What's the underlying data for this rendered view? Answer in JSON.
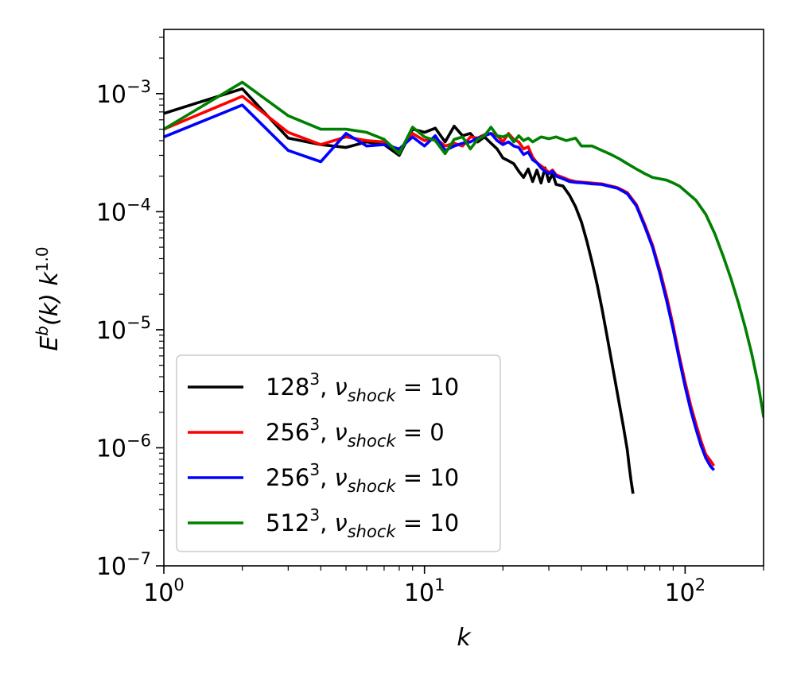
{
  "chart_data": {
    "type": "line",
    "x_scale": "log",
    "y_scale": "log",
    "xlim": [
      1,
      200
    ],
    "ylim": [
      1e-07,
      0.0035
    ],
    "xlabel": "k",
    "ylabel": {
      "main": "E",
      "sup": "b",
      "mid": "(k) k",
      "exp": "1.0"
    },
    "x_ticks": [
      {
        "value": 1,
        "base": "10",
        "exp": "0"
      },
      {
        "value": 10,
        "base": "10",
        "exp": "1"
      },
      {
        "value": 100,
        "base": "10",
        "exp": "2"
      }
    ],
    "y_ticks": [
      {
        "value": 1e-07,
        "base": "10",
        "exp": "−7"
      },
      {
        "value": 1e-06,
        "base": "10",
        "exp": "−6"
      },
      {
        "value": 1e-05,
        "base": "10",
        "exp": "−5"
      },
      {
        "value": 0.0001,
        "base": "10",
        "exp": "−4"
      },
      {
        "value": 0.001,
        "base": "10",
        "exp": "−3"
      }
    ],
    "legend": {
      "location": "lower-left"
    },
    "series": [
      {
        "name": "128^3, nu_shock = 10",
        "label": {
          "base": "128",
          "sup": "3",
          "sym": "ν",
          "sub": "shock",
          "eq": " = 10"
        },
        "color": "#000000",
        "points": [
          [
            1,
            0.00068
          ],
          [
            2,
            0.0011
          ],
          [
            3,
            0.00042
          ],
          [
            4,
            0.00037
          ],
          [
            5,
            0.00035
          ],
          [
            6,
            0.00039
          ],
          [
            7,
            0.00037
          ],
          [
            8,
            0.0003
          ],
          [
            9,
            0.0005
          ],
          [
            10,
            0.00047
          ],
          [
            11,
            0.00051
          ],
          [
            12,
            0.00039
          ],
          [
            13,
            0.00053
          ],
          [
            14,
            0.00044
          ],
          [
            15,
            0.00046
          ],
          [
            16,
            0.00039
          ],
          [
            17,
            0.00043
          ],
          [
            18,
            0.00038
          ],
          [
            19,
            0.00034
          ],
          [
            20,
            0.000285
          ],
          [
            21,
            0.00027
          ],
          [
            22,
            0.000255
          ],
          [
            23,
            0.00022
          ],
          [
            24,
            0.000195
          ],
          [
            25,
            0.00023
          ],
          [
            26,
            0.00018
          ],
          [
            27,
            0.000225
          ],
          [
            28,
            0.000175
          ],
          [
            29,
            0.000235
          ],
          [
            30,
            0.00018
          ],
          [
            31,
            0.00021
          ],
          [
            32,
            0.00017
          ],
          [
            34,
            0.000165
          ],
          [
            36,
            0.000138
          ],
          [
            38,
            0.00011
          ],
          [
            40,
            8.2e-05
          ],
          [
            42,
            5.6e-05
          ],
          [
            44,
            3.7e-05
          ],
          [
            46,
            2.4e-05
          ],
          [
            48,
            1.5e-05
          ],
          [
            50,
            9.2e-06
          ],
          [
            52,
            5.7e-06
          ],
          [
            54,
            3.6e-06
          ],
          [
            56,
            2.3e-06
          ],
          [
            58,
            1.5e-06
          ],
          [
            60,
            9.6e-07
          ],
          [
            61,
            7e-07
          ],
          [
            62,
            5.3e-07
          ],
          [
            63,
            4.2e-07
          ]
        ]
      },
      {
        "name": "256^3, nu_shock = 0",
        "label": {
          "base": "256",
          "sup": "3",
          "sym": "ν",
          "sub": "shock",
          "eq": " = 0"
        },
        "color": "#ff0000",
        "points": [
          [
            1,
            0.0005
          ],
          [
            2,
            0.00095
          ],
          [
            3,
            0.00047
          ],
          [
            4,
            0.00037
          ],
          [
            5,
            0.00043
          ],
          [
            6,
            0.0004
          ],
          [
            7,
            0.00039
          ],
          [
            8,
            0.00033
          ],
          [
            9,
            0.00046
          ],
          [
            10,
            0.0004
          ],
          [
            11,
            0.00042
          ],
          [
            12,
            0.00036
          ],
          [
            13,
            0.00038
          ],
          [
            14,
            0.00036
          ],
          [
            15,
            0.00043
          ],
          [
            16,
            0.00042
          ],
          [
            17,
            0.00045
          ],
          [
            18,
            0.00046
          ],
          [
            19,
            0.00044
          ],
          [
            20,
            0.00039
          ],
          [
            21,
            0.00046
          ],
          [
            22,
            0.00041
          ],
          [
            23,
            0.00039
          ],
          [
            24,
            0.00034
          ],
          [
            25,
            0.000355
          ],
          [
            26,
            0.00029
          ],
          [
            27,
            0.00026
          ],
          [
            28,
            0.000245
          ],
          [
            29,
            0.00023
          ],
          [
            30,
            0.000215
          ],
          [
            31,
            0.000225
          ],
          [
            32,
            0.000205
          ],
          [
            34,
            0.000195
          ],
          [
            36,
            0.000185
          ],
          [
            38,
            0.00018
          ],
          [
            40,
            0.000178
          ],
          [
            44,
            0.000175
          ],
          [
            48,
            0.000172
          ],
          [
            50,
            0.000168
          ],
          [
            55,
            0.00016
          ],
          [
            60,
            0.000145
          ],
          [
            65,
            0.000115
          ],
          [
            70,
            7.8e-05
          ],
          [
            75,
            5.2e-05
          ],
          [
            80,
            3.2e-05
          ],
          [
            85,
            1.9e-05
          ],
          [
            90,
            1.08e-05
          ],
          [
            95,
            6e-06
          ],
          [
            100,
            3.6e-06
          ],
          [
            105,
            2.3e-06
          ],
          [
            110,
            1.6e-06
          ],
          [
            115,
            1.15e-06
          ],
          [
            120,
            8.8e-07
          ],
          [
            125,
            7.8e-07
          ],
          [
            128,
            7.2e-07
          ]
        ]
      },
      {
        "name": "256^3, nu_shock = 10",
        "label": {
          "base": "256",
          "sup": "3",
          "sym": "ν",
          "sub": "shock",
          "eq": " = 10"
        },
        "color": "#0000ff",
        "points": [
          [
            1,
            0.00043
          ],
          [
            2,
            0.0008
          ],
          [
            3,
            0.00033
          ],
          [
            4,
            0.000265
          ],
          [
            5,
            0.00046
          ],
          [
            6,
            0.00036
          ],
          [
            7,
            0.00037
          ],
          [
            8,
            0.00034
          ],
          [
            9,
            0.00043
          ],
          [
            10,
            0.00036
          ],
          [
            11,
            0.00044
          ],
          [
            12,
            0.00033
          ],
          [
            13,
            0.00036
          ],
          [
            14,
            0.00038
          ],
          [
            15,
            0.00039
          ],
          [
            16,
            0.00042
          ],
          [
            17,
            0.00044
          ],
          [
            18,
            0.00046
          ],
          [
            19,
            0.0004
          ],
          [
            20,
            0.00037
          ],
          [
            21,
            0.00039
          ],
          [
            22,
            0.00036
          ],
          [
            23,
            0.00035
          ],
          [
            24,
            0.000305
          ],
          [
            25,
            0.00032
          ],
          [
            26,
            0.000275
          ],
          [
            27,
            0.00026
          ],
          [
            28,
            0.000235
          ],
          [
            29,
            0.00022
          ],
          [
            30,
            0.00021
          ],
          [
            31,
            0.00022
          ],
          [
            32,
            0.0002
          ],
          [
            34,
            0.00019
          ],
          [
            36,
            0.00018
          ],
          [
            38,
            0.000177
          ],
          [
            40,
            0.000176
          ],
          [
            44,
            0.000172
          ],
          [
            48,
            0.00017
          ],
          [
            50,
            0.000166
          ],
          [
            55,
            0.000158
          ],
          [
            60,
            0.000142
          ],
          [
            65,
            0.000112
          ],
          [
            70,
            7.5e-05
          ],
          [
            75,
            5e-05
          ],
          [
            80,
            3e-05
          ],
          [
            85,
            1.75e-05
          ],
          [
            90,
            1e-05
          ],
          [
            95,
            5.6e-06
          ],
          [
            100,
            3.3e-06
          ],
          [
            105,
            2.1e-06
          ],
          [
            110,
            1.45e-06
          ],
          [
            115,
            1.05e-06
          ],
          [
            120,
            8.2e-07
          ],
          [
            125,
            7e-07
          ],
          [
            128,
            6.6e-07
          ]
        ]
      },
      {
        "name": "512^3, nu_shock = 10",
        "label": {
          "base": "512",
          "sup": "3",
          "sym": "ν",
          "sub": "shock",
          "eq": " = 10"
        },
        "color": "#008000",
        "points": [
          [
            1,
            0.0005
          ],
          [
            2,
            0.00125
          ],
          [
            3,
            0.00065
          ],
          [
            4,
            0.0005
          ],
          [
            5,
            0.0005
          ],
          [
            6,
            0.00047
          ],
          [
            7,
            0.00041
          ],
          [
            8,
            0.00031
          ],
          [
            9,
            0.00052
          ],
          [
            10,
            0.00043
          ],
          [
            11,
            0.0004
          ],
          [
            12,
            0.00031
          ],
          [
            13,
            0.00041
          ],
          [
            14,
            0.00043
          ],
          [
            15,
            0.00034
          ],
          [
            16,
            0.00041
          ],
          [
            17,
            0.00044
          ],
          [
            18,
            0.00052
          ],
          [
            19,
            0.00044
          ],
          [
            20,
            0.00043
          ],
          [
            21,
            0.00045
          ],
          [
            22,
            0.00039
          ],
          [
            23,
            0.00044
          ],
          [
            24,
            0.0004
          ],
          [
            25,
            0.00042
          ],
          [
            26,
            0.00039
          ],
          [
            28,
            0.00043
          ],
          [
            30,
            0.000415
          ],
          [
            32,
            0.00043
          ],
          [
            35,
            0.0004
          ],
          [
            38,
            0.00042
          ],
          [
            40,
            0.00036
          ],
          [
            44,
            0.00036
          ],
          [
            48,
            0.00033
          ],
          [
            52,
            0.000305
          ],
          [
            56,
            0.00028
          ],
          [
            60,
            0.000255
          ],
          [
            65,
            0.00023
          ],
          [
            70,
            0.00021
          ],
          [
            75,
            0.000195
          ],
          [
            80,
            0.00019
          ],
          [
            85,
            0.000185
          ],
          [
            90,
            0.000175
          ],
          [
            95,
            0.000165
          ],
          [
            100,
            0.00015
          ],
          [
            110,
            0.000125
          ],
          [
            120,
            9.5e-05
          ],
          [
            130,
            6.5e-05
          ],
          [
            140,
            4.2e-05
          ],
          [
            150,
            2.7e-05
          ],
          [
            160,
            1.7e-05
          ],
          [
            170,
            1.05e-05
          ],
          [
            180,
            6.3e-06
          ],
          [
            190,
            3.6e-06
          ],
          [
            200,
            1.85e-06
          ]
        ]
      }
    ]
  }
}
